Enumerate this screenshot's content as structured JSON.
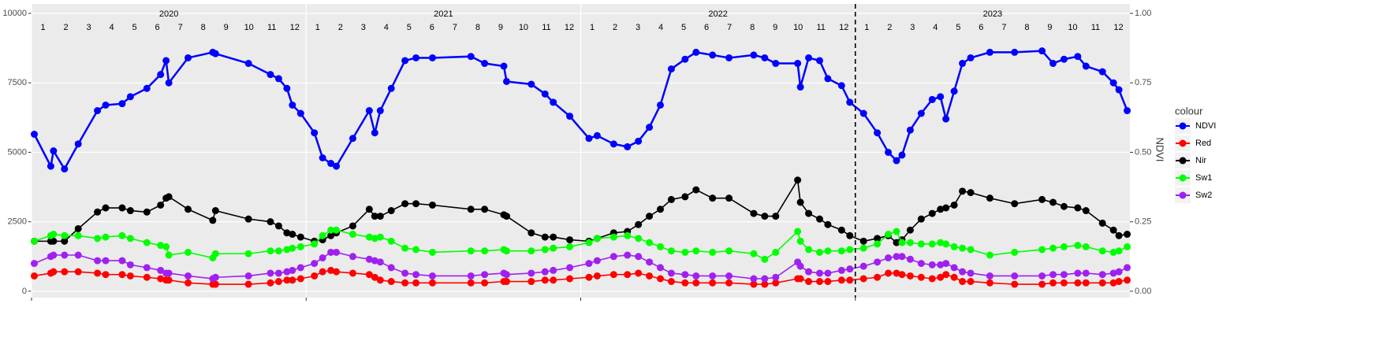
{
  "chart_data": {
    "type": "line",
    "y2label": "NDVI",
    "legend_title": "colour",
    "years": [
      2020,
      2021,
      2022,
      2023
    ],
    "months": [
      1,
      2,
      3,
      4,
      5,
      6,
      7,
      8,
      9,
      10,
      11,
      12
    ],
    "vline": 2023,
    "xlim": [
      2020,
      2024
    ],
    "xticks": [
      2020,
      2021,
      2022,
      2023
    ],
    "ylim": [
      -230,
      10340
    ],
    "yticks": [
      0,
      2500,
      5000,
      7500,
      10000
    ],
    "y2lim": [
      -0.023,
      1.034
    ],
    "y2ticks": [
      {
        "value": 0,
        "label": "0.00"
      },
      {
        "value": 0.25,
        "label": "0.25"
      },
      {
        "value": 0.5,
        "label": "0.50"
      },
      {
        "value": 0.75,
        "label": "0.75"
      },
      {
        "value": 1,
        "label": "1.00"
      }
    ],
    "grid": true,
    "x": [
      2020.01,
      2020.07,
      2020.08,
      2020.12,
      2020.17,
      2020.24,
      2020.27,
      2020.33,
      2020.36,
      2020.42,
      2020.47,
      2020.49,
      2020.5,
      2020.57,
      2020.66,
      2020.67,
      2020.79,
      2020.87,
      2020.9,
      2020.93,
      2020.95,
      2020.98,
      2021.03,
      2021.06,
      2021.09,
      2021.11,
      2021.17,
      2021.23,
      2021.25,
      2021.27,
      2021.31,
      2021.36,
      2021.4,
      2021.46,
      2021.6,
      2021.65,
      2021.72,
      2021.73,
      2021.82,
      2021.87,
      2021.9,
      2021.96,
      2022.03,
      2022.06,
      2022.12,
      2022.17,
      2022.21,
      2022.25,
      2022.29,
      2022.33,
      2022.38,
      2022.42,
      2022.48,
      2022.54,
      2022.63,
      2022.67,
      2022.71,
      2022.79,
      2022.8,
      2022.83,
      2022.87,
      2022.9,
      2022.95,
      2022.98,
      2023.03,
      2023.08,
      2023.12,
      2023.15,
      2023.17,
      2023.2,
      2023.24,
      2023.28,
      2023.31,
      2023.33,
      2023.36,
      2023.39,
      2023.42,
      2023.49,
      2023.58,
      2023.68,
      2023.72,
      2023.76,
      2023.81,
      2023.84,
      2023.9,
      2023.94,
      2023.96,
      2023.99
    ],
    "series": [
      {
        "name": "NDVI",
        "color": "#0000ff",
        "axis": "y2",
        "values": [
          0.565,
          0.45,
          0.505,
          0.44,
          0.53,
          0.65,
          0.67,
          0.675,
          0.7,
          0.73,
          0.78,
          0.83,
          0.75,
          0.84,
          0.86,
          0.855,
          0.82,
          0.78,
          0.765,
          0.73,
          0.67,
          0.64,
          0.57,
          0.48,
          0.46,
          0.45,
          0.55,
          0.65,
          0.57,
          0.65,
          0.73,
          0.83,
          0.84,
          0.84,
          0.845,
          0.82,
          0.81,
          0.755,
          0.745,
          0.71,
          0.68,
          0.63,
          0.55,
          0.56,
          0.53,
          0.52,
          0.54,
          0.59,
          0.67,
          0.8,
          0.835,
          0.86,
          0.85,
          0.84,
          0.85,
          0.84,
          0.82,
          0.82,
          0.735,
          0.84,
          0.83,
          0.765,
          0.74,
          0.68,
          0.64,
          0.57,
          0.5,
          0.47,
          0.49,
          0.58,
          0.64,
          0.69,
          0.7,
          0.62,
          0.72,
          0.82,
          0.84,
          0.86,
          0.86,
          0.865,
          0.82,
          0.835,
          0.845,
          0.81,
          0.79,
          0.75,
          0.725,
          0.65
        ]
      },
      {
        "name": "Red",
        "color": "#ff0000",
        "values": [
          550,
          650,
          700,
          700,
          700,
          650,
          600,
          600,
          550,
          500,
          450,
          400,
          400,
          300,
          250,
          250,
          250,
          300,
          350,
          400,
          400,
          450,
          550,
          700,
          750,
          700,
          650,
          600,
          500,
          400,
          350,
          300,
          300,
          300,
          300,
          300,
          350,
          350,
          350,
          400,
          400,
          450,
          500,
          550,
          600,
          600,
          650,
          550,
          450,
          350,
          300,
          300,
          300,
          300,
          250,
          250,
          300,
          450,
          450,
          350,
          350,
          350,
          400,
          400,
          450,
          500,
          650,
          650,
          600,
          550,
          500,
          450,
          500,
          600,
          500,
          350,
          350,
          300,
          250,
          250,
          300,
          300,
          300,
          300,
          300,
          300,
          350,
          400
        ]
      },
      {
        "name": "Nir",
        "color": "#000000",
        "values": [
          1800,
          1800,
          1800,
          1800,
          2250,
          2850,
          3000,
          3000,
          2900,
          2850,
          3100,
          3350,
          3400,
          2950,
          2550,
          2900,
          2600,
          2500,
          2350,
          2100,
          2050,
          1950,
          1800,
          1850,
          2000,
          2100,
          2350,
          2950,
          2700,
          2700,
          2900,
          3150,
          3150,
          3100,
          2950,
          2950,
          2750,
          2700,
          2100,
          1950,
          1950,
          1850,
          1800,
          1900,
          2100,
          2150,
          2400,
          2700,
          2950,
          3300,
          3400,
          3650,
          3350,
          3350,
          2800,
          2700,
          2700,
          4000,
          3200,
          2800,
          2600,
          2400,
          2200,
          2000,
          1800,
          1900,
          2000,
          1750,
          1850,
          2200,
          2600,
          2800,
          2950,
          3000,
          3100,
          3600,
          3550,
          3350,
          3150,
          3300,
          3200,
          3050,
          3000,
          2900,
          2450,
          2200,
          2000,
          2050
        ]
      },
      {
        "name": "Sw1",
        "color": "#00ff00",
        "values": [
          1800,
          2000,
          2050,
          2000,
          2000,
          1900,
          1950,
          2000,
          1900,
          1750,
          1650,
          1600,
          1300,
          1400,
          1200,
          1350,
          1350,
          1450,
          1450,
          1500,
          1550,
          1600,
          1700,
          2000,
          2200,
          2200,
          2050,
          1950,
          1900,
          1950,
          1800,
          1550,
          1500,
          1400,
          1450,
          1450,
          1500,
          1450,
          1450,
          1500,
          1550,
          1600,
          1750,
          1900,
          1950,
          2000,
          1900,
          1750,
          1600,
          1450,
          1400,
          1450,
          1400,
          1450,
          1350,
          1150,
          1400,
          2150,
          1800,
          1500,
          1400,
          1450,
          1450,
          1500,
          1550,
          1700,
          2050,
          2150,
          1750,
          1750,
          1700,
          1700,
          1750,
          1700,
          1600,
          1550,
          1500,
          1300,
          1400,
          1500,
          1550,
          1600,
          1650,
          1600,
          1450,
          1400,
          1450,
          1600
        ]
      },
      {
        "name": "Sw2",
        "color": "#a020f0",
        "values": [
          1000,
          1250,
          1300,
          1300,
          1300,
          1100,
          1100,
          1100,
          950,
          850,
          750,
          650,
          650,
          550,
          450,
          500,
          550,
          650,
          650,
          700,
          750,
          850,
          1000,
          1200,
          1400,
          1400,
          1250,
          1150,
          1100,
          1050,
          850,
          650,
          600,
          550,
          550,
          600,
          650,
          600,
          650,
          700,
          750,
          850,
          1000,
          1100,
          1250,
          1300,
          1250,
          1050,
          850,
          650,
          600,
          550,
          550,
          550,
          450,
          450,
          500,
          1050,
          900,
          700,
          650,
          650,
          750,
          800,
          900,
          1050,
          1200,
          1250,
          1250,
          1150,
          1000,
          950,
          950,
          1000,
          850,
          700,
          650,
          550,
          550,
          550,
          600,
          600,
          650,
          650,
          600,
          650,
          700,
          850
        ]
      }
    ]
  }
}
